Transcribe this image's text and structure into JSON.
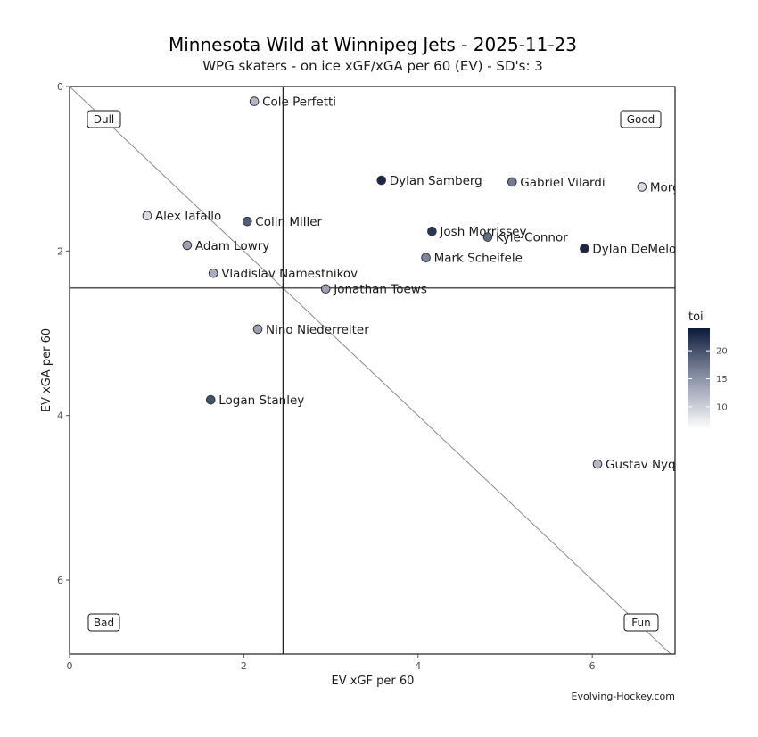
{
  "chart_data": {
    "type": "scatter",
    "title": "Minnesota Wild at Winnipeg Jets - 2025-11-23",
    "subtitle": "WPG skaters - on ice xGF/xGA per 60 (EV) - SD's: 3",
    "xlabel": "EV xGF per 60",
    "ylabel": "EV xGA per 60",
    "xlim": [
      0,
      6.95
    ],
    "ylim": [
      0,
      6.9
    ],
    "y_reversed": true,
    "x_ticks": [
      "0",
      "2",
      "4",
      "6"
    ],
    "y_ticks": [
      "0",
      "2",
      "4",
      "6"
    ],
    "reference_lines": {
      "vline_x": 2.45,
      "hline_y": 2.45,
      "diagonal": "y = x"
    },
    "quadrant_labels": {
      "top_left": "Dull",
      "top_right": "Good",
      "bottom_left": "Bad",
      "bottom_right": "Fun"
    },
    "color_scale": {
      "title": "toi",
      "ticks": [
        "10",
        "15",
        "20"
      ],
      "range": [
        6,
        24
      ],
      "low_color": "#ffffff",
      "high_color": "#0b1a3a"
    },
    "points": [
      {
        "player": "Cole Perfetti",
        "x": 2.12,
        "y": 0.18,
        "toi": 12
      },
      {
        "player": "Dylan Samberg",
        "x": 3.58,
        "y": 1.14,
        "toi": 23
      },
      {
        "player": "Gabriel Vilardi",
        "x": 5.08,
        "y": 1.16,
        "toi": 17
      },
      {
        "player": "Morgan Barron",
        "x": 6.57,
        "y": 1.22,
        "toi": 9
      },
      {
        "player": "Alex Iafallo",
        "x": 0.89,
        "y": 1.57,
        "toi": 9
      },
      {
        "player": "Colin Miller",
        "x": 2.04,
        "y": 1.64,
        "toi": 19
      },
      {
        "player": "Josh Morrissey",
        "x": 4.16,
        "y": 1.76,
        "toi": 22
      },
      {
        "player": "Kyle Connor",
        "x": 4.8,
        "y": 1.83,
        "toi": 18
      },
      {
        "player": "Dylan DeMelo",
        "x": 5.91,
        "y": 1.97,
        "toi": 23
      },
      {
        "player": "Adam Lowry",
        "x": 1.35,
        "y": 1.93,
        "toi": 14
      },
      {
        "player": "Mark Scheifele",
        "x": 4.09,
        "y": 2.08,
        "toi": 16
      },
      {
        "player": "Vladislav Namestnikov",
        "x": 1.65,
        "y": 2.27,
        "toi": 13
      },
      {
        "player": "Jonathan Toews",
        "x": 2.94,
        "y": 2.46,
        "toi": 14
      },
      {
        "player": "Nino Niederreiter",
        "x": 2.16,
        "y": 2.95,
        "toi": 14
      },
      {
        "player": "Logan Stanley",
        "x": 1.62,
        "y": 3.81,
        "toi": 20
      },
      {
        "player": "Gustav Nyquist",
        "x": 6.06,
        "y": 4.59,
        "toi": 12
      }
    ],
    "caption": "Evolving-Hockey.com"
  }
}
